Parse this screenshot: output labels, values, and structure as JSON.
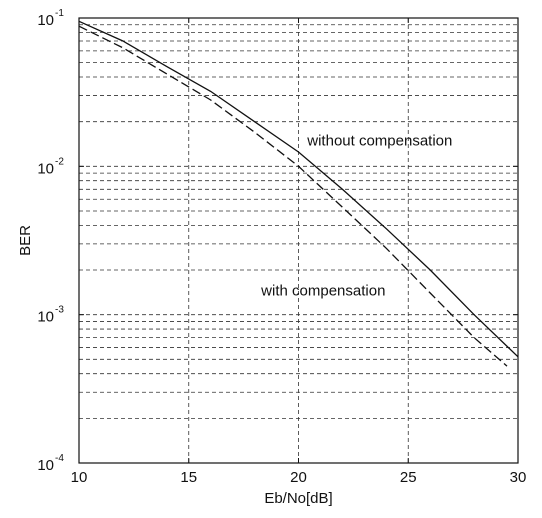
{
  "chart_data": {
    "type": "line",
    "xlabel": "Eb/No[dB]",
    "ylabel": "BER",
    "xlim": [
      10,
      30
    ],
    "ylim": [
      0.0001,
      0.1
    ],
    "yscale": "log",
    "grid": true,
    "x_ticks": [
      {
        "value": 10,
        "label": "10"
      },
      {
        "value": 15,
        "label": "15"
      },
      {
        "value": 20,
        "label": "20"
      },
      {
        "value": 25,
        "label": "25"
      },
      {
        "value": 30,
        "label": "30"
      }
    ],
    "y_ticks": [
      {
        "value": 0.1,
        "base": "10",
        "exp": "-1"
      },
      {
        "value": 0.01,
        "base": "10",
        "exp": "-2"
      },
      {
        "value": 0.001,
        "base": "10",
        "exp": "-3"
      },
      {
        "value": 0.0001,
        "base": "10",
        "exp": "-4"
      }
    ],
    "series": [
      {
        "style": "solid",
        "x": [
          10,
          12,
          14,
          16,
          18,
          20,
          22,
          24,
          26,
          28,
          30
        ],
        "y": [
          0.095,
          0.07,
          0.047,
          0.032,
          0.02,
          0.0125,
          0.007,
          0.0038,
          0.002,
          0.001,
          0.00052
        ]
      },
      {
        "style": "dashed",
        "x": [
          10,
          12,
          14,
          16,
          18,
          20,
          22,
          24,
          26,
          28,
          29.5
        ],
        "y": [
          0.088,
          0.063,
          0.042,
          0.028,
          0.017,
          0.01,
          0.0053,
          0.0028,
          0.0014,
          0.0007,
          0.00045
        ]
      }
    ],
    "annotations": [
      {
        "text": "without compensation",
        "x": 20.4,
        "y": 0.0138
      },
      {
        "text": "with compensation",
        "x": 18.3,
        "y": 0.00135
      }
    ]
  }
}
